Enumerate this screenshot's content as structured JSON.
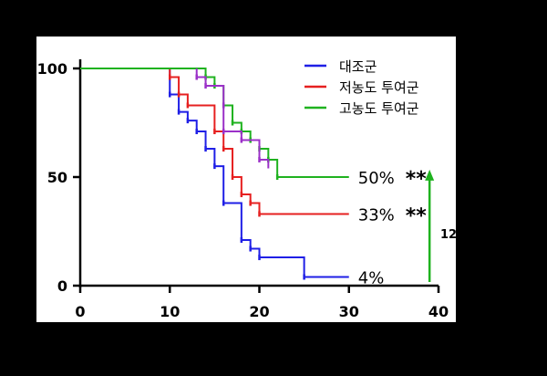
{
  "chart_data": {
    "type": "line",
    "title": "",
    "xlabel": "",
    "ylabel": "",
    "xlim": [
      0,
      40
    ],
    "ylim": [
      0,
      100
    ],
    "x_ticks": [
      "0",
      "10",
      "20",
      "30",
      "40"
    ],
    "y_ticks": [
      "0",
      "50",
      "100"
    ],
    "grid": false,
    "legend": "top-right",
    "series": [
      {
        "name": "대조군",
        "color": "#1f1fe6",
        "end_label": "4%",
        "steps": [
          [
            0,
            100
          ],
          [
            10,
            88
          ],
          [
            11,
            80
          ],
          [
            12,
            76
          ],
          [
            13,
            71
          ],
          [
            14,
            63
          ],
          [
            15,
            55
          ],
          [
            16,
            38
          ],
          [
            18,
            21
          ],
          [
            19,
            17
          ],
          [
            20,
            13
          ],
          [
            25,
            4
          ],
          [
            30,
            4
          ]
        ]
      },
      {
        "name": "저농도 투여군",
        "color": "#e62020",
        "end_label": "33%",
        "steps": [
          [
            0,
            100
          ],
          [
            10,
            96
          ],
          [
            11,
            88
          ],
          [
            12,
            83
          ],
          [
            15,
            71
          ],
          [
            16,
            63
          ],
          [
            17,
            50
          ],
          [
            18,
            42
          ],
          [
            19,
            38
          ],
          [
            20,
            33
          ],
          [
            30,
            33
          ]
        ]
      },
      {
        "name": "고농도 투여군",
        "color": "#1fb21f",
        "end_label": "50%",
        "steps": [
          [
            0,
            100
          ],
          [
            14,
            96
          ],
          [
            15,
            92
          ],
          [
            16,
            83
          ],
          [
            17,
            75
          ],
          [
            18,
            71
          ],
          [
            19,
            67
          ],
          [
            20,
            63
          ],
          [
            21,
            58
          ],
          [
            22,
            50
          ],
          [
            30,
            50
          ]
        ]
      },
      {
        "name": "",
        "color": "#9b30c8",
        "end_label": "",
        "steps": [
          [
            13,
            100
          ],
          [
            13,
            96
          ],
          [
            14,
            92
          ],
          [
            16,
            83
          ],
          [
            16,
            71
          ],
          [
            18,
            67
          ],
          [
            20,
            58
          ],
          [
            21,
            54
          ]
        ]
      }
    ],
    "significance": {
      "text": "**",
      "series": [
        "고농도 투여군",
        "저농도 투여군"
      ]
    },
    "arrow": {
      "x": 39,
      "y_from": 0,
      "y_to": 53,
      "color": "#1fb21f",
      "label": "12"
    }
  }
}
